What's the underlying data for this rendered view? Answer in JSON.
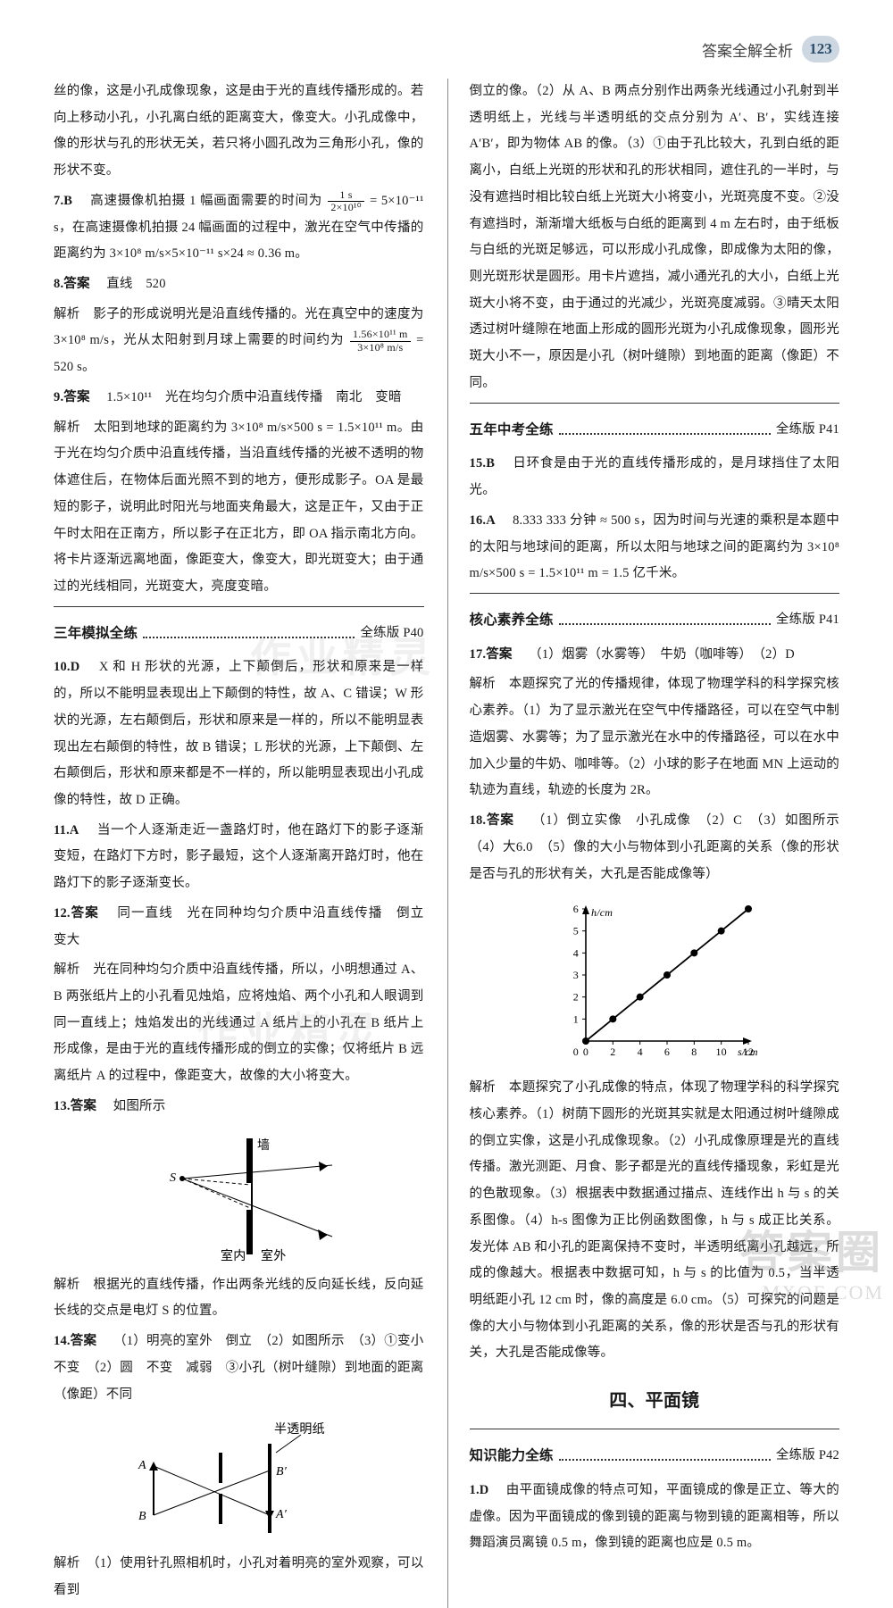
{
  "header": {
    "title": "答案全解全析",
    "page_number": "123"
  },
  "left": {
    "p_intro": "丝的像，这是小孔成像现象，这是由于光的直线传播形成的。若向上移动小孔，小孔离白纸的距离变大，像变大。小孔成像中，像的形状与孔的形状无关，若只将小圆孔改为三角形小孔，像的形状不变。",
    "q7": {
      "num": "7.B",
      "pre": "高速摄像机拍摄 1 幅画面需要的时间为",
      "frac_num": "1 s",
      "frac_den": "2×10¹⁰",
      "mid": "= 5×10⁻¹¹ s，在高速摄像机拍摄 24 幅画面的过程中，激光在空气中传播的距离约为 3×10⁸ m/s×5×10⁻¹¹ s×24 ≈ 0.36 m。"
    },
    "q8": {
      "num": "8.答案",
      "ans": "直线　520",
      "pre": "解析　影子的形成说明光是沿直线传播的。光在真空中的速度为 3×10⁸ m/s，光从太阳射到月球上需要的时间约为",
      "frac_num": "1.56×10¹¹ m",
      "frac_den": "3×10⁸ m/s",
      "post": "= 520 s。"
    },
    "q9": {
      "num": "9.答案",
      "ans": "1.5×10¹¹　光在均匀介质中沿直线传播　南北　变暗",
      "body": "解析　太阳到地球的距离约为 3×10⁸ m/s×500 s = 1.5×10¹¹ m。由于光在均匀介质中沿直线传播，当沿直线传播的光被不透明的物体遮住后，在物体后面光照不到的地方，便形成影子。OA 是最短的影子，说明此时阳光与地面夹角最大，这是正午，又由于正午时太阳在正南方，所以影子在正北方，即 OA 指示南北方向。将卡片逐渐远离地面，像距变大，像变大，即光斑变大；由于通过的光线相同，光斑变大，亮度变暗。"
    },
    "sec1": {
      "title": "三年模拟全练",
      "page": "全练版 P40"
    },
    "q10": {
      "num": "10.D",
      "body": "X 和 H 形状的光源，上下颠倒后，形状和原来是一样的，所以不能明显表现出上下颠倒的特性，故 A、C 错误；W 形状的光源，左右颠倒后，形状和原来是一样的，所以不能明显表现出左右颠倒的特性，故 B 错误；L 形状的光源，上下颠倒、左右颠倒后，形状和原来都是不一样的，所以能明显表现出小孔成像的特性，故 D 正确。"
    },
    "q11": {
      "num": "11.A",
      "body": "当一个人逐渐走近一盏路灯时，他在路灯下的影子逐渐变短，在路灯下方时，影子最短，这个人逐渐离开路灯时，他在路灯下的影子逐渐变长。"
    },
    "q12": {
      "num": "12.答案",
      "ans": "同一直线　光在同种均匀介质中沿直线传播　倒立　变大",
      "body": "解析　光在同种均匀介质中沿直线传播，所以，小明想通过 A、B 两张纸片上的小孔看见烛焰，应将烛焰、两个小孔和人眼调到同一直线上；烛焰发出的光线通过 A 纸片上的小孔在 B 纸片上形成像，是由于光的直线传播形成的倒立的实像；仅将纸片 B 远离纸片 A 的过程中，像距变大，故像的大小将变大。"
    },
    "q13": {
      "num": "13.答案",
      "ans": "如图所示",
      "fig_labels": {
        "wall": "墙",
        "s": "S",
        "indoor": "室内",
        "outdoor": "室外"
      },
      "body": "解析　根据光的直线传播，作出两条光线的反向延长线，反向延长线的交点是电灯 S 的位置。"
    },
    "q14": {
      "num": "14.答案",
      "ans": "（1）明亮的室外　倒立　（2）如图所示　（3）①变小　不变　（2）圆　不变　减弱　③小孔（树叶缝隙）到地面的距离（像距）不同",
      "fig_labels": {
        "paper": "半透明纸",
        "A": "A",
        "B": "B",
        "Ap": "A′",
        "Bp": "B′"
      },
      "body": "解析　（1）使用针孔照相机时，小孔对着明亮的室外观察，可以看到"
    }
  },
  "right": {
    "p_cont": "倒立的像。（2）从 A、B 两点分别作出两条光线通过小孔射到半透明纸上，光线与半透明纸的交点分别为 A′、B′，实线连接 A′B′，即为物体 AB 的像。（3）①由于孔比较大，孔到白纸的距离小，白纸上光斑的形状和孔的形状相同，遮住孔的一半时，与没有遮挡时相比较白纸上光斑大小将变小，光斑亮度不变。②没有遮挡时，渐渐增大纸板与白纸的距离到 4 m 左右时，由于纸板与白纸的光斑足够远，可以形成小孔成像，即成像为太阳的像，则光斑形状是圆形。用卡片遮挡，减小通光孔的大小，白纸上光斑大小将不变，由于通过的光减少，光斑亮度减弱。③晴天太阳透过树叶缝隙在地面上形成的圆形光斑为小孔成像现象，圆形光斑大小不一，原因是小孔（树叶缝隙）到地面的距离（像距）不同。",
    "sec2": {
      "title": "五年中考全练",
      "page": "全练版 P41"
    },
    "q15": {
      "num": "15.B",
      "body": "日环食是由于光的直线传播形成的，是月球挡住了太阳光。"
    },
    "q16": {
      "num": "16.A",
      "body": "8.333 333 分钟 ≈ 500 s，因为时间与光速的乘积是本题中的太阳与地球间的距离，所以太阳与地球之间的距离约为 3×10⁸ m/s×500 s = 1.5×10¹¹ m = 1.5 亿千米。"
    },
    "sec3": {
      "title": "核心素养全练",
      "page": "全练版 P41"
    },
    "q17": {
      "num": "17.答案",
      "ans": "（1）烟雾（水雾等）　牛奶（咖啡等）　（2）D",
      "body": "解析　本题探究了光的传播规律，体现了物理学科的科学探究核心素养。（1）为了显示激光在空气中传播路径，可以在空气中制造烟雾、水雾等；为了显示激光在水中的传播路径，可以在水中加入少量的牛奶、咖啡等。（2）小球的影子在地面 MN 上运动的轨迹为直线，轨迹的长度为 2R。"
    },
    "q18": {
      "num": "18.答案",
      "ans": "（1）倒立实像　小孔成像　（2）C　（3）如图所示　（4）大6.0　（5）像的大小与物体到小孔距离的关系（像的形状是否与孔的形状有关，大孔是否能成像等）",
      "chart": {
        "type": "line",
        "x_label": "s/cm",
        "y_label": "h/cm",
        "x_ticks": [
          0,
          2,
          4,
          6,
          8,
          10,
          12
        ],
        "y_ticks": [
          0,
          1,
          2,
          3,
          4,
          5,
          6
        ],
        "xlim": [
          0,
          12
        ],
        "ylim": [
          0,
          6
        ],
        "points": [
          [
            0,
            0
          ],
          [
            2,
            1
          ],
          [
            4,
            2
          ],
          [
            6,
            3
          ],
          [
            8,
            4
          ],
          [
            10,
            5
          ],
          [
            12,
            6
          ]
        ],
        "line_color": "#000000",
        "marker": "circle",
        "marker_size": 4,
        "background": "#ffffff",
        "axis_color": "#000000",
        "font_size": 12
      },
      "body": "解析　本题探究了小孔成像的特点，体现了物理学科的科学探究核心素养。（1）树荫下圆形的光斑其实就是太阳通过树叶缝隙成的倒立实像，这是小孔成像现象。（2）小孔成像原理是光的直线传播。激光测距、月食、影子都是光的直线传播现象，彩虹是光的色散现象。（3）根据表中数据通过描点、连线作出 h 与 s 的关系图像。（4）h-s 图像为正比例函数图像，h 与 s 成正比关系。发光体 AB 和小孔的距离保持不变时，半透明纸离小孔越远，所成的像越大。根据表中数据可知，h 与 s 的比值为 0.5，当半透明纸距小孔 12 cm 时，像的高度是 6.0 cm。（5）可探究的问题是像的大小与物体到小孔距离的关系，像的形状是否与孔的形状有关，大孔是否能成像等。"
    },
    "sec4_heading": "四、平面镜",
    "sec5": {
      "title": "知识能力全练",
      "page": "全练版 P42"
    },
    "q1": {
      "num": "1.D",
      "body": "由平面镜成像的特点可知，平面镜成的像是正立、等大的虚像。因为平面镜成的像到镜的距离与物到镜的距离相等，所以舞蹈演员离镜 0.5 m，像到镜的距离也应是 0.5 m。"
    }
  },
  "watermark": {
    "line1": "答案圈",
    "line2": "MXQE.COM"
  },
  "ghost": {
    "t1": "作业精灵",
    "t2": "作业精灵"
  }
}
